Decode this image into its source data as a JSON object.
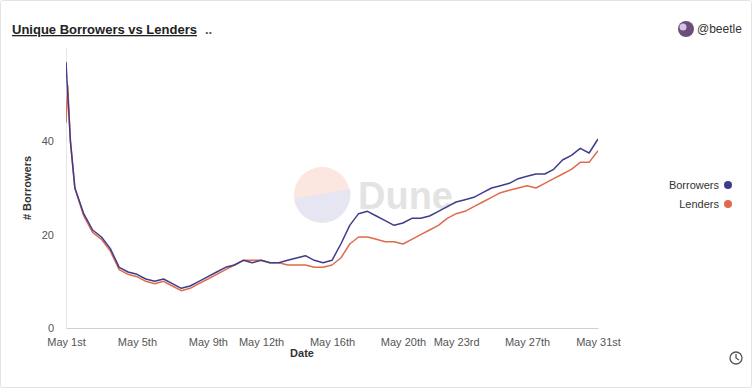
{
  "chart_data": {
    "type": "line",
    "title": "Unique Borrowers vs Lenders",
    "annotations": [
      "..",
      "@beetle",
      "Dune"
    ],
    "x_label": "Date",
    "y_label": "# Borrowers",
    "x": [
      1,
      1.1,
      1.25,
      1.5,
      2,
      2.5,
      3,
      3.5,
      4,
      4.5,
      5,
      5.5,
      6,
      6.5,
      7,
      7.5,
      8,
      8.5,
      9,
      9.5,
      10,
      10.5,
      11,
      11.5,
      12,
      12.5,
      13,
      13.5,
      14,
      14.5,
      15,
      15.5,
      16,
      16.5,
      17,
      17.5,
      18,
      18.5,
      19,
      19.5,
      20,
      20.5,
      21,
      21.5,
      22,
      22.5,
      23,
      23.5,
      24,
      24.5,
      25,
      25.5,
      26,
      26.5,
      27,
      27.5,
      28,
      28.5,
      29,
      29.5,
      30,
      30.5,
      31
    ],
    "series": [
      {
        "name": "Borrowers",
        "color": "#3f3d8a",
        "values": [
          57,
          50,
          40,
          30,
          24.5,
          21,
          19.5,
          17,
          13,
          12,
          11.5,
          10.5,
          10,
          10.5,
          9.5,
          8.5,
          9,
          10,
          11,
          12,
          13,
          13.5,
          14.5,
          14,
          14.5,
          14,
          14,
          14.5,
          15,
          15.5,
          14.5,
          14,
          14.5,
          18,
          22,
          24.5,
          25,
          24,
          23,
          22,
          22.5,
          23.5,
          23.5,
          24,
          25,
          26,
          27,
          27.5,
          28,
          29,
          30,
          30.5,
          31,
          32,
          32.5,
          33,
          33,
          34,
          36,
          37,
          38.5,
          37.5,
          40.5
        ]
      },
      {
        "name": "Lenders",
        "color": "#e06a4b",
        "values": [
          44,
          52,
          40,
          30,
          24,
          20.5,
          19,
          16.5,
          12.5,
          11.5,
          11,
          10,
          9.5,
          10,
          9,
          8,
          8.5,
          9.5,
          10.5,
          11.5,
          12.5,
          13.5,
          14.5,
          14.5,
          14.5,
          14,
          14,
          13.5,
          13.5,
          13.5,
          13,
          13,
          13.5,
          15,
          18,
          19.5,
          19.5,
          19,
          18.5,
          18.5,
          18,
          19,
          20,
          21,
          22,
          23.5,
          24.5,
          25,
          26,
          27,
          28,
          29,
          29.5,
          30,
          30.5,
          30,
          31,
          32,
          33,
          34,
          35.5,
          35.5,
          38
        ]
      }
    ],
    "xlim": [
      1,
      31
    ],
    "xticks": [
      {
        "value": 1,
        "label": "May 1st"
      },
      {
        "value": 5,
        "label": "May 5th"
      },
      {
        "value": 9,
        "label": "May 9th"
      },
      {
        "value": 12,
        "label": "May 12th"
      },
      {
        "value": 16,
        "label": "May 16th"
      },
      {
        "value": 20,
        "label": "May 20th"
      },
      {
        "value": 23,
        "label": "May 23rd"
      },
      {
        "value": 27,
        "label": "May 27th"
      },
      {
        "value": 31,
        "label": "May 31st"
      }
    ],
    "ylim": [
      0,
      60
    ],
    "yticks": [
      0,
      20,
      40
    ],
    "grid": false,
    "legend": "right"
  }
}
